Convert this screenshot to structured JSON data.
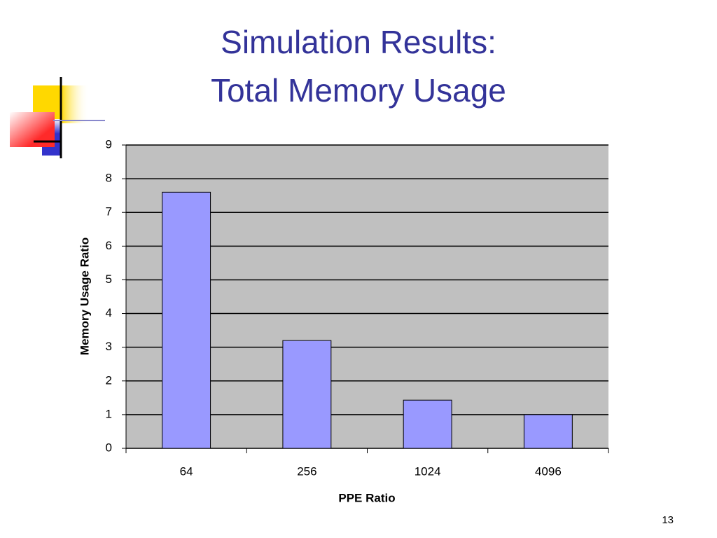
{
  "slide": {
    "title_lines": [
      "Simulation Results:",
      "Total Memory Usage"
    ],
    "page_number": 13
  },
  "chart_data": {
    "type": "bar",
    "x_label": "PPE Ratio",
    "y_label": "Memory Usage Ratio",
    "categories": [
      "64",
      "256",
      "1024",
      "4096"
    ],
    "values": [
      7.6,
      3.2,
      1.43,
      1.0
    ],
    "color": "#9999ff",
    "ylim": [
      0,
      9
    ],
    "yticks": [
      0,
      1,
      2,
      3,
      4,
      5,
      6,
      7,
      8,
      9
    ],
    "grid": true
  }
}
